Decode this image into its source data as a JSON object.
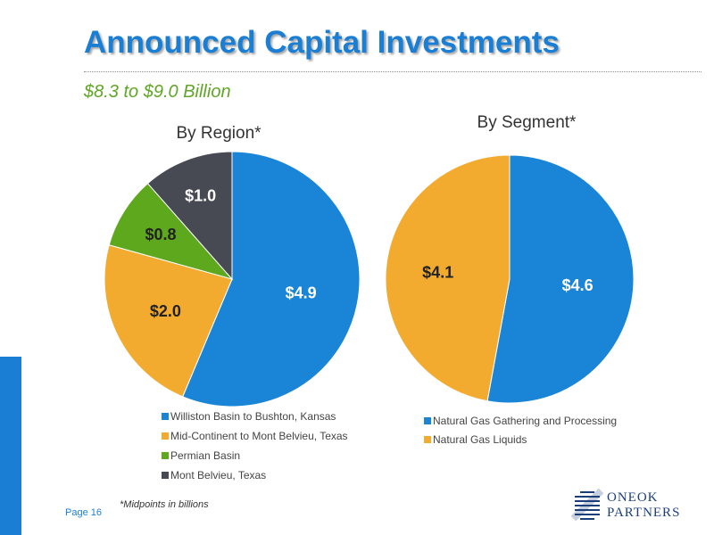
{
  "slide": {
    "title": "Announced Capital Investments",
    "subtitle": "$8.3 to $9.0 Billion",
    "page": "Page 16",
    "footnote": "*Midpoints in billions",
    "logo": "ONEOK\nPARTNERS"
  },
  "colors": {
    "title": "#1a7fd4",
    "subtitle": "#5fa626",
    "blue": "#1a85d6",
    "orange": "#f2ab2e",
    "green": "#5ea81e",
    "dark": "#474a52"
  },
  "chart_data": [
    {
      "type": "pie",
      "title": "By Region*",
      "categories": [
        "Williston Basin to Bushton, Kansas",
        "Mid-Continent to Mont Belvieu, Texas",
        "Permian Basin",
        "Mont Belvieu, Texas"
      ],
      "values": [
        4.9,
        2.0,
        0.8,
        1.0
      ],
      "data_labels": [
        "$4.9",
        "$2.0",
        "$0.8",
        "$1.0"
      ],
      "colors": [
        "#1a85d6",
        "#f2ab2e",
        "#5ea81e",
        "#474a52"
      ],
      "legend": "bottom"
    },
    {
      "type": "pie",
      "title": "By Segment*",
      "categories": [
        "Natural Gas Gathering and Processing",
        "Natural Gas Liquids"
      ],
      "values": [
        4.6,
        4.1
      ],
      "data_labels": [
        "$4.6",
        "$4.1"
      ],
      "colors": [
        "#1a85d6",
        "#f2ab2e"
      ],
      "legend": "bottom"
    }
  ]
}
